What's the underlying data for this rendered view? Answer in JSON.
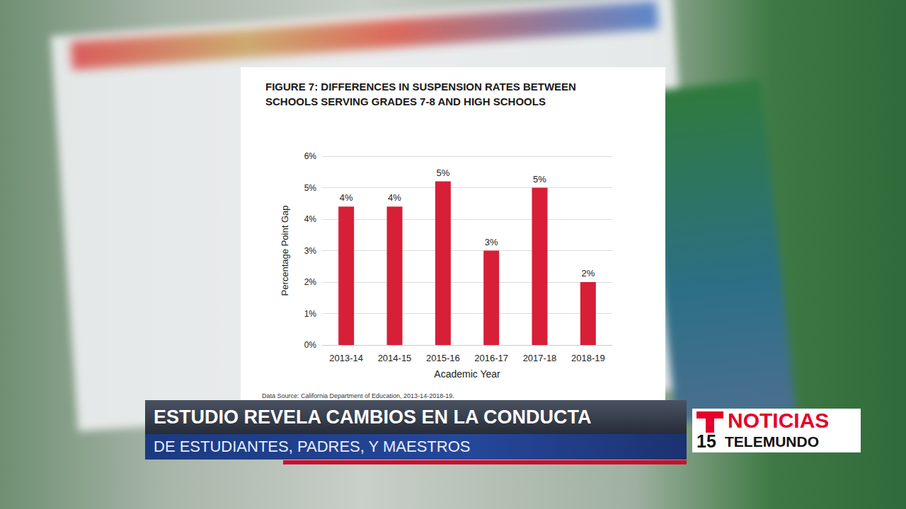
{
  "chart_data": {
    "type": "bar",
    "title": "FIGURE 7: DIFFERENCES IN SUSPENSION RATES BETWEEN SCHOOLS SERVING GRADES 7-8 AND HIGH SCHOOLS",
    "categories": [
      "2013-14",
      "2014-15",
      "2015-16",
      "2016-17",
      "2017-18",
      "2018-19"
    ],
    "values": [
      4.4,
      4.4,
      5.2,
      3.0,
      5.0,
      2.0
    ],
    "value_labels": [
      "4%",
      "4%",
      "5%",
      "3%",
      "5%",
      "2%"
    ],
    "color": "#d71f37",
    "ylim": [
      0,
      6
    ],
    "yticks": [
      {
        "value": 0,
        "label": "0%"
      },
      {
        "value": 1,
        "label": "1%"
      },
      {
        "value": 2,
        "label": "2%"
      },
      {
        "value": 3,
        "label": "3%"
      },
      {
        "value": 4,
        "label": "4%"
      },
      {
        "value": 5,
        "label": "5%"
      },
      {
        "value": 6,
        "label": "6%"
      }
    ],
    "x_label": "Academic Year",
    "y_label": "Percentage Point Gap",
    "source": "Data Source: California Department of Education, 2013-14-2018-19.",
    "grid": true,
    "data_labels": true
  },
  "banner": {
    "headline": "ESTUDIO REVELA CAMBIOS EN LA CONDUCTA",
    "subheadline": "DE ESTUDIANTES, PADRES, Y MAESTROS"
  },
  "logo": {
    "name": "NOTICIAS",
    "channel": "15",
    "network": "TELEMUNDO"
  }
}
